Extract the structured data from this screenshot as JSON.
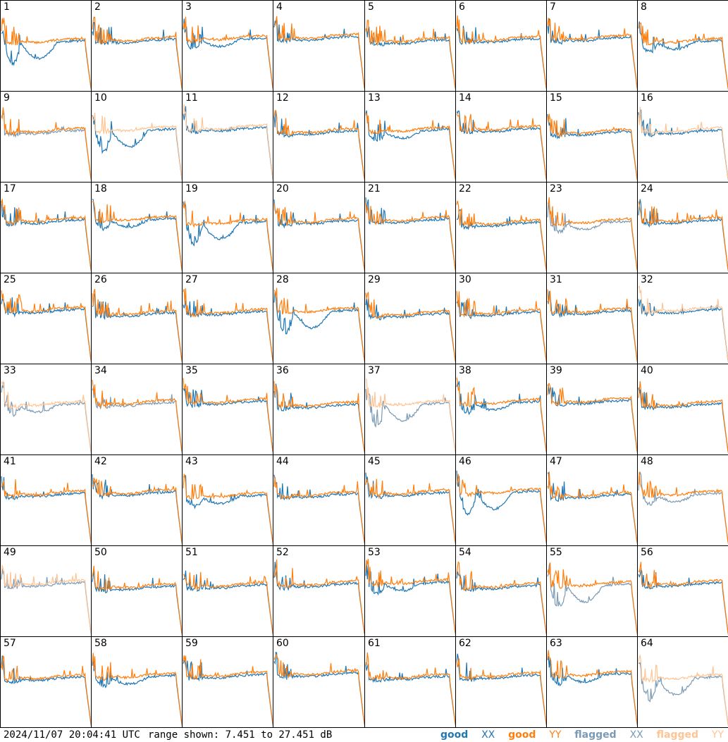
{
  "chart_data": {
    "type": "line",
    "title": "",
    "panel_labels": [
      "1",
      "2",
      "3",
      "4",
      "5",
      "6",
      "7",
      "8",
      "9",
      "10",
      "11",
      "12",
      "13",
      "14",
      "15",
      "16",
      "17",
      "18",
      "19",
      "20",
      "21",
      "22",
      "23",
      "24",
      "25",
      "26",
      "27",
      "28",
      "29",
      "30",
      "31",
      "32",
      "33",
      "34",
      "35",
      "36",
      "37",
      "38",
      "39",
      "40",
      "41",
      "42",
      "43",
      "44",
      "45",
      "46",
      "47",
      "48",
      "49",
      "50",
      "51",
      "52",
      "53",
      "54",
      "55",
      "56",
      "57",
      "58",
      "59",
      "60",
      "61",
      "62",
      "63",
      "64"
    ],
    "grid": {
      "rows": 8,
      "cols": 8
    },
    "ylim_db": [
      7.451,
      27.451
    ],
    "series_styles": {
      "good XX": "#1f77b4",
      "good YY": "#ff7f0e",
      "flagged XX": "#7a9ab5",
      "flagged YY": "#ffc494"
    },
    "flagged_panels": {
      "xx": [
        "9",
        "23",
        "33",
        "34",
        "37",
        "48",
        "49",
        "55",
        "64"
      ],
      "yy": [
        "10",
        "11",
        "16",
        "32",
        "33",
        "37",
        "49",
        "64"
      ]
    }
  },
  "footer": {
    "timestamp": "2024/11/07 20:04:41 UTC",
    "range_text": "range shown: 7.451 to 27.451 dB"
  },
  "legend": {
    "good_label": "good",
    "flagged_label": "flagged",
    "xx_symbol": "XX",
    "yy_symbol": "YY",
    "colors": {
      "good_xx": "#1f77b4",
      "good_yy": "#ff7f0e",
      "flagged_xx": "#7a9ab5",
      "flagged_yy": "#ffc494"
    }
  }
}
